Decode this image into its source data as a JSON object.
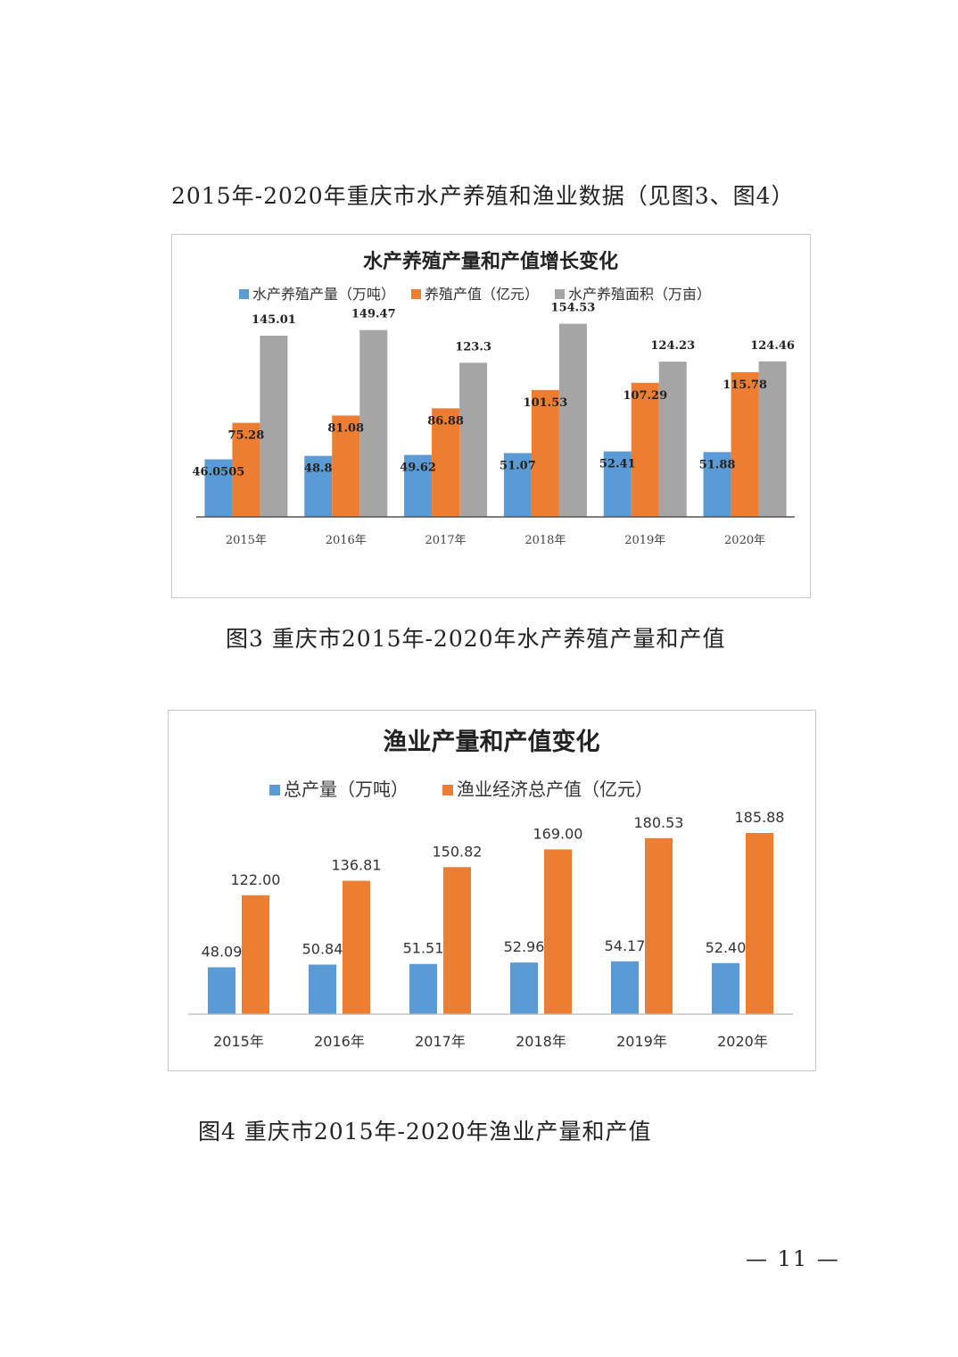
{
  "intro_text": "2015年-2020年重庆市水产养殖和渔业数据（见图3、图4）",
  "captions": {
    "fig3": "图3  重庆市2015年-2020年水产养殖产量和产值",
    "fig4": "图4  重庆市2015年-2020年渔业产量和产值"
  },
  "page_number": "— 11 —",
  "chart_data": [
    {
      "type": "bar",
      "title": "水产养殖产量和产值增长变化",
      "categories": [
        "2015年",
        "2016年",
        "2017年",
        "2018年",
        "2019年",
        "2020年"
      ],
      "series": [
        {
          "name": "水产养殖产量（万吨）",
          "color": "#5b9bd5",
          "values": [
            46.0505,
            48.8,
            49.62,
            51.07,
            52.41,
            51.88
          ],
          "labels": [
            "46.0505",
            "48.8",
            "49.62",
            "51.07",
            "52.41",
            "51.88"
          ]
        },
        {
          "name": "养殖产值（亿元）",
          "color": "#ed7d31",
          "values": [
            75.28,
            81.08,
            86.88,
            101.53,
            107.29,
            115.78
          ],
          "labels": [
            "75.28",
            "81.08",
            "86.88",
            "101.53",
            "107.29",
            "115.78"
          ]
        },
        {
          "name": "水产养殖面积（万亩）",
          "color": "#a5a5a5",
          "values": [
            145.01,
            149.47,
            123.3,
            154.53,
            124.23,
            124.46
          ],
          "labels": [
            "145.01",
            "149.47",
            "123.3",
            "154.53",
            "124.23",
            "124.46"
          ]
        }
      ],
      "ylim": [
        0,
        155
      ],
      "legend": "top",
      "grid": false
    },
    {
      "type": "bar",
      "title": "渔业产量和产值变化",
      "categories": [
        "2015年",
        "2016年",
        "2017年",
        "2018年",
        "2019年",
        "2020年"
      ],
      "series": [
        {
          "name": "总产量（万吨）",
          "color": "#5b9bd5",
          "values": [
            48.09,
            50.84,
            51.51,
            52.96,
            54.17,
            52.4
          ],
          "labels": [
            "48.09",
            "50.84",
            "51.51",
            "52.96",
            "54.17",
            "52.40"
          ]
        },
        {
          "name": "渔业经济总产值（亿元）",
          "color": "#ed7d31",
          "values": [
            122.0,
            136.81,
            150.82,
            169.0,
            180.53,
            185.88
          ],
          "labels": [
            "122.00",
            "136.81",
            "150.82",
            "169.00",
            "180.53",
            "185.88"
          ]
        }
      ],
      "ylim": [
        0,
        185.88
      ],
      "legend": "top",
      "grid": false
    }
  ]
}
